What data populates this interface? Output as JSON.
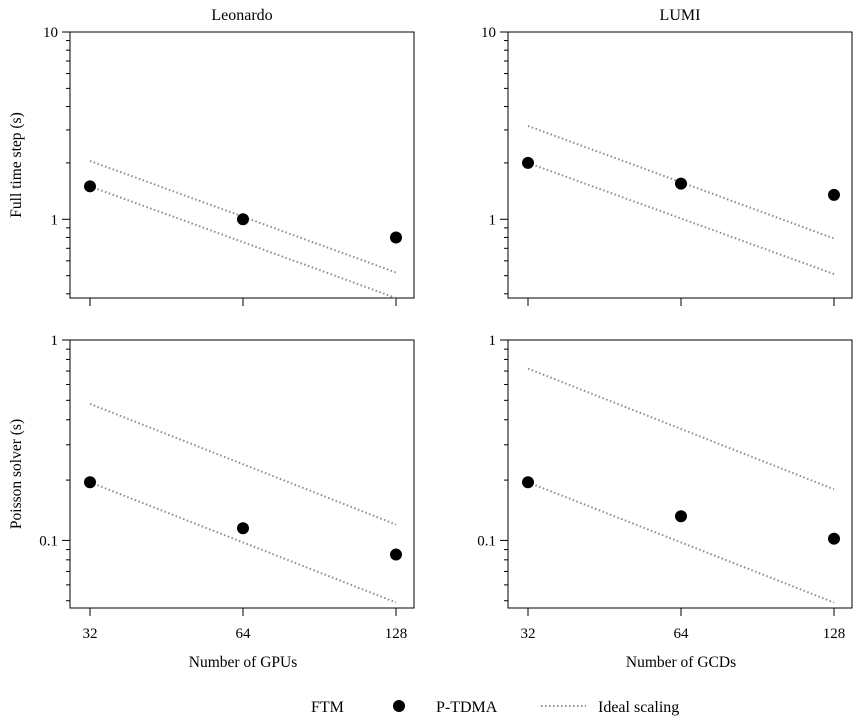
{
  "chart_data": [
    {
      "type": "scatter",
      "title": "Leonardo",
      "xlabel": "",
      "ylabel": "Full time step (s)",
      "xscale": "log2",
      "yscale": "log10",
      "x_ticks": [
        32,
        64,
        128
      ],
      "y_tick_labels": [
        "1",
        "10"
      ],
      "ylim": [
        0.38,
        10
      ],
      "series": [
        {
          "name": "P-TDMA",
          "x": [
            32,
            64,
            128
          ],
          "y": [
            1.5,
            1.0,
            0.8
          ]
        }
      ],
      "ideal_scaling": [
        {
          "x": [
            32,
            128
          ],
          "y": [
            2.05,
            0.52
          ]
        },
        {
          "x": [
            32,
            128
          ],
          "y": [
            1.5,
            0.38
          ]
        }
      ]
    },
    {
      "type": "scatter",
      "title": "LUMI",
      "xlabel": "",
      "ylabel": "",
      "xscale": "log2",
      "yscale": "log10",
      "x_ticks": [
        32,
        64,
        128
      ],
      "y_tick_labels": [
        "1",
        "10"
      ],
      "ylim": [
        0.38,
        10
      ],
      "series": [
        {
          "name": "P-TDMA",
          "x": [
            32,
            64,
            128
          ],
          "y": [
            2.0,
            1.55,
            1.35
          ]
        }
      ],
      "ideal_scaling": [
        {
          "x": [
            32,
            128
          ],
          "y": [
            3.15,
            0.79
          ]
        },
        {
          "x": [
            32,
            128
          ],
          "y": [
            2.0,
            0.51
          ]
        }
      ]
    },
    {
      "type": "scatter",
      "title": "",
      "xlabel": "Number of GPUs",
      "ylabel": "Poisson solver (s)",
      "xscale": "log2",
      "yscale": "log10",
      "x_ticks": [
        32,
        64,
        128
      ],
      "y_tick_labels": [
        "0.1",
        "1"
      ],
      "ylim": [
        0.046,
        1
      ],
      "series": [
        {
          "name": "P-TDMA",
          "x": [
            32,
            64,
            128
          ],
          "y": [
            0.195,
            0.115,
            0.085
          ]
        }
      ],
      "ideal_scaling": [
        {
          "x": [
            32,
            128
          ],
          "y": [
            0.48,
            0.12
          ]
        },
        {
          "x": [
            32,
            128
          ],
          "y": [
            0.195,
            0.049
          ]
        }
      ]
    },
    {
      "type": "scatter",
      "title": "",
      "xlabel": "Number of GCDs",
      "ylabel": "",
      "xscale": "log2",
      "yscale": "log10",
      "x_ticks": [
        32,
        64,
        128
      ],
      "y_tick_labels": [
        "0.1",
        "1"
      ],
      "ylim": [
        0.046,
        1
      ],
      "series": [
        {
          "name": "P-TDMA",
          "x": [
            32,
            64,
            128
          ],
          "y": [
            0.195,
            0.132,
            0.102
          ]
        }
      ],
      "ideal_scaling": [
        {
          "x": [
            32,
            128
          ],
          "y": [
            0.72,
            0.18
          ]
        },
        {
          "x": [
            32,
            128
          ],
          "y": [
            0.195,
            0.049
          ]
        }
      ]
    }
  ],
  "legend": {
    "title": "FTM",
    "items": [
      {
        "label": "P-TDMA",
        "marker": "filled-circle"
      },
      {
        "label": "Ideal scaling",
        "marker": "dotted-line"
      }
    ],
    "placement": "bottom-center"
  },
  "colors": {
    "points": "#000000",
    "ideal": "#8c8c8c",
    "axes": "#000000"
  }
}
